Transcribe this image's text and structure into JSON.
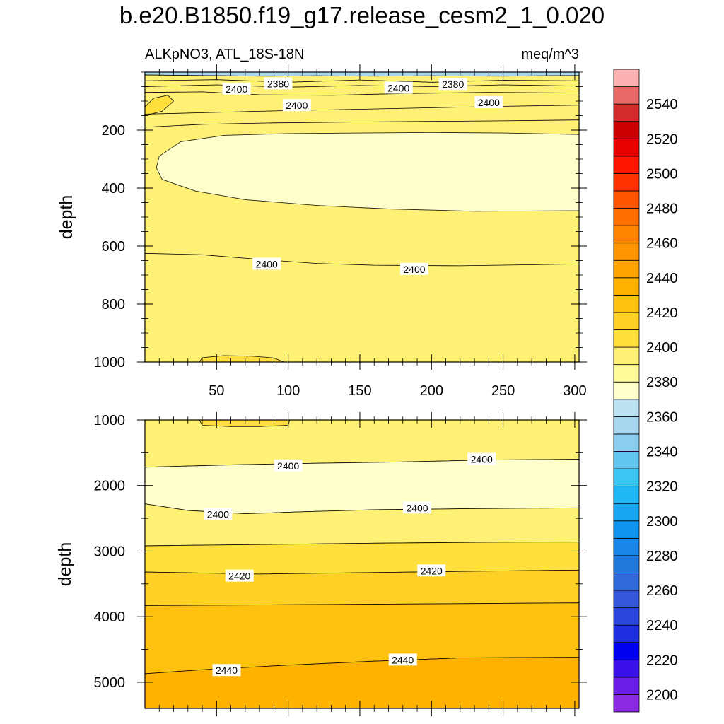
{
  "title": "b.e20.B1850.f19_g17.release_cesm2_1_0.020",
  "left_string": "ALKpNO3, ATL_18S-18N",
  "right_string": "meq/m^3",
  "chart_data": [
    {
      "type": "contour",
      "ylabel": "depth",
      "xlim": [
        0,
        303
      ],
      "ylim": [
        1000,
        0
      ],
      "x_ticks": [
        50,
        100,
        150,
        200,
        250,
        300
      ],
      "y_ticks": [
        200,
        400,
        600,
        800,
        1000
      ],
      "contour_labels": [
        {
          "text": "2380",
          "x": 93,
          "y": 40
        },
        {
          "text": "2400",
          "x": 64,
          "y": 58
        },
        {
          "text": "2400",
          "x": 177,
          "y": 55
        },
        {
          "text": "2380",
          "x": 215,
          "y": 42
        },
        {
          "text": "2400",
          "x": 106,
          "y": 115
        },
        {
          "text": "2400",
          "x": 240,
          "y": 105
        },
        {
          "text": "2400",
          "x": 85,
          "y": 662
        },
        {
          "text": "2400",
          "x": 188,
          "y": 680
        }
      ],
      "regions": [
        {
          "level": 2360,
          "top": [
            [
              0,
              0
            ],
            [
              303,
              0
            ]
          ],
          "bottom": [
            [
              0,
              10
            ],
            [
              40,
              12
            ],
            [
              80,
              14
            ],
            [
              120,
              13
            ],
            [
              160,
              14
            ],
            [
              200,
              13
            ],
            [
              250,
              14
            ],
            [
              303,
              12
            ]
          ]
        },
        {
          "level": 2400,
          "top": [
            [
              0,
              10
            ],
            [
              40,
              12
            ],
            [
              80,
              14
            ],
            [
              120,
              13
            ],
            [
              160,
              14
            ],
            [
              200,
              13
            ],
            [
              250,
              14
            ],
            [
              303,
              12
            ]
          ],
          "bottom": [
            [
              0,
              1000
            ],
            [
              303,
              1000
            ]
          ]
        },
        {
          "level": 2380,
          "top": [
            [
              303,
              215
            ],
            [
              250,
              210
            ],
            [
              200,
              208
            ],
            [
              150,
              210
            ],
            [
              100,
              212
            ],
            [
              55,
              218
            ],
            [
              25,
              240
            ],
            [
              10,
              290
            ],
            [
              8,
              330
            ],
            [
              12,
              370
            ],
            [
              35,
              410
            ],
            [
              70,
              440
            ],
            [
              120,
              460
            ],
            [
              170,
              472
            ],
            [
              230,
              480
            ],
            [
              303,
              478
            ]
          ],
          "bottom": null
        },
        {
          "level": 2410,
          "top": [
            [
              0,
              120
            ],
            [
              6,
              90
            ],
            [
              16,
              80
            ],
            [
              20,
              100
            ],
            [
              12,
              135
            ],
            [
              0,
              150
            ]
          ],
          "bottom": null
        },
        {
          "level": 2410,
          "top": [
            [
              38,
              1000
            ],
            [
              40,
              985
            ],
            [
              55,
              978
            ],
            [
              75,
              980
            ],
            [
              90,
              986
            ],
            [
              97,
              1000
            ]
          ],
          "bottom": null
        }
      ],
      "contour_lines": [
        [
          [
            0,
            30
          ],
          [
            50,
            26
          ],
          [
            100,
            35
          ],
          [
            150,
            27
          ],
          [
            200,
            35
          ],
          [
            250,
            28
          ],
          [
            303,
            30
          ]
        ],
        [
          [
            0,
            50
          ],
          [
            50,
            44
          ],
          [
            100,
            52
          ],
          [
            150,
            46
          ],
          [
            200,
            50
          ],
          [
            250,
            44
          ],
          [
            303,
            48
          ]
        ],
        [
          [
            0,
            70
          ],
          [
            40,
            68
          ],
          [
            80,
            78
          ],
          [
            130,
            80
          ],
          [
            180,
            74
          ],
          [
            240,
            70
          ],
          [
            303,
            72
          ]
        ],
        [
          [
            0,
            145
          ],
          [
            40,
            140
          ],
          [
            90,
            134
          ],
          [
            150,
            128
          ],
          [
            200,
            123
          ],
          [
            250,
            118
          ],
          [
            303,
            114
          ]
        ],
        [
          [
            0,
            190
          ],
          [
            40,
            180
          ],
          [
            90,
            175
          ],
          [
            150,
            172
          ],
          [
            200,
            170
          ],
          [
            250,
            168
          ],
          [
            303,
            165
          ]
        ],
        [
          [
            0,
            625
          ],
          [
            40,
            630
          ],
          [
            80,
            646
          ],
          [
            120,
            660
          ],
          [
            160,
            666
          ],
          [
            220,
            668
          ],
          [
            303,
            662
          ]
        ]
      ]
    },
    {
      "type": "contour",
      "ylabel": "depth",
      "xlim": [
        0,
        303
      ],
      "ylim": [
        5400,
        1000
      ],
      "y_ticks": [
        1000,
        2000,
        3000,
        4000,
        5000
      ],
      "contour_labels": [
        {
          "text": "2400",
          "x": 100,
          "y": 1700
        },
        {
          "text": "2400",
          "x": 235,
          "y": 1600
        },
        {
          "text": "2400",
          "x": 51,
          "y": 2440
        },
        {
          "text": "2400",
          "x": 190,
          "y": 2340
        },
        {
          "text": "2420",
          "x": 66,
          "y": 3380
        },
        {
          "text": "2420",
          "x": 200,
          "y": 3300
        },
        {
          "text": "2440",
          "x": 57,
          "y": 4820
        },
        {
          "text": "2440",
          "x": 180,
          "y": 4660
        }
      ],
      "regions": [
        {
          "level": 2400,
          "top": [
            [
              0,
              1000
            ],
            [
              303,
              1000
            ]
          ],
          "bottom": [
            [
              0,
              1720
            ],
            [
              60,
              1685
            ],
            [
              120,
              1660
            ],
            [
              180,
              1640
            ],
            [
              240,
              1610
            ],
            [
              303,
              1600
            ]
          ]
        },
        {
          "level": 2380,
          "top": [
            [
              0,
              1720
            ],
            [
              60,
              1685
            ],
            [
              120,
              1660
            ],
            [
              180,
              1640
            ],
            [
              240,
              1610
            ],
            [
              303,
              1600
            ]
          ],
          "bottom": [
            [
              0,
              2280
            ],
            [
              30,
              2380
            ],
            [
              70,
              2430
            ],
            [
              110,
              2400
            ],
            [
              160,
              2370
            ],
            [
              220,
              2355
            ],
            [
              303,
              2340
            ]
          ]
        },
        {
          "level": 2400,
          "top": [
            [
              0,
              2280
            ],
            [
              30,
              2380
            ],
            [
              70,
              2430
            ],
            [
              110,
              2400
            ],
            [
              160,
              2370
            ],
            [
              220,
              2355
            ],
            [
              303,
              2340
            ]
          ],
          "bottom": [
            [
              0,
              2920
            ],
            [
              80,
              2900
            ],
            [
              160,
              2880
            ],
            [
              240,
              2865
            ],
            [
              303,
              2860
            ]
          ]
        },
        {
          "level": 2410,
          "top": [
            [
              0,
              2920
            ],
            [
              80,
              2900
            ],
            [
              160,
              2880
            ],
            [
              240,
              2865
            ],
            [
              303,
              2860
            ]
          ],
          "bottom": [
            [
              0,
              3320
            ],
            [
              80,
              3350
            ],
            [
              150,
              3330
            ],
            [
              220,
              3310
            ],
            [
              303,
              3290
            ]
          ]
        },
        {
          "level": 2420,
          "top": [
            [
              0,
              3320
            ],
            [
              80,
              3350
            ],
            [
              150,
              3330
            ],
            [
              220,
              3310
            ],
            [
              303,
              3290
            ]
          ],
          "bottom": [
            [
              0,
              3830
            ],
            [
              80,
              3820
            ],
            [
              160,
              3810
            ],
            [
              240,
              3800
            ],
            [
              303,
              3790
            ]
          ]
        },
        {
          "level": 2430,
          "top": [
            [
              0,
              3830
            ],
            [
              80,
              3820
            ],
            [
              160,
              3810
            ],
            [
              240,
              3800
            ],
            [
              303,
              3790
            ]
          ],
          "bottom": [
            [
              0,
              4870
            ],
            [
              40,
              4810
            ],
            [
              100,
              4740
            ],
            [
              160,
              4680
            ],
            [
              220,
              4630
            ],
            [
              303,
              4620
            ]
          ]
        },
        {
          "level": 2440,
          "top": [
            [
              0,
              4870
            ],
            [
              40,
              4810
            ],
            [
              100,
              4740
            ],
            [
              160,
              4680
            ],
            [
              220,
              4630
            ],
            [
              303,
              4620
            ]
          ],
          "bottom": [
            [
              0,
              5400
            ],
            [
              303,
              5400
            ]
          ]
        },
        {
          "level": 2410,
          "top": [
            [
              38,
              1000
            ],
            [
              40,
              1080
            ],
            [
              60,
              1100
            ],
            [
              80,
              1100
            ],
            [
              100,
              1080
            ],
            [
              101,
              1000
            ]
          ],
          "bottom": null
        }
      ],
      "contour_lines": []
    }
  ],
  "colorbar": {
    "levels": [
      2200,
      2210,
      2220,
      2230,
      2240,
      2250,
      2260,
      2270,
      2280,
      2290,
      2300,
      2310,
      2320,
      2330,
      2340,
      2350,
      2360,
      2370,
      2380,
      2390,
      2400,
      2410,
      2420,
      2430,
      2440,
      2450,
      2460,
      2470,
      2480,
      2490,
      2500,
      2510,
      2520,
      2530,
      2540,
      2550
    ],
    "labels": [
      2200,
      2220,
      2240,
      2260,
      2280,
      2300,
      2320,
      2340,
      2360,
      2380,
      2400,
      2420,
      2440,
      2460,
      2480,
      2500,
      2520,
      2540
    ],
    "colors": [
      "#8a2be2",
      "#6a1ee8",
      "#3a10e8",
      "#0000f0",
      "#1f2fe0",
      "#2c45dd",
      "#3557da",
      "#2f6ad8",
      "#2378dc",
      "#1a86e8",
      "#1094ee",
      "#18a6f0",
      "#20b8f4",
      "#3cc4f2",
      "#62c6ef",
      "#8ccdee",
      "#a8d6ee",
      "#bde3f3",
      "#ffffcc",
      "#fffa9a",
      "#fff176",
      "#ffe03c",
      "#ffd127",
      "#ffc10f",
      "#ffb300",
      "#ffa400",
      "#ff9500",
      "#ff8400",
      "#ff6f00",
      "#ff5500",
      "#ff3200",
      "#ff1500",
      "#e80000",
      "#cc0000",
      "#d42c2c",
      "#e96868",
      "#fcb2b2"
    ]
  }
}
